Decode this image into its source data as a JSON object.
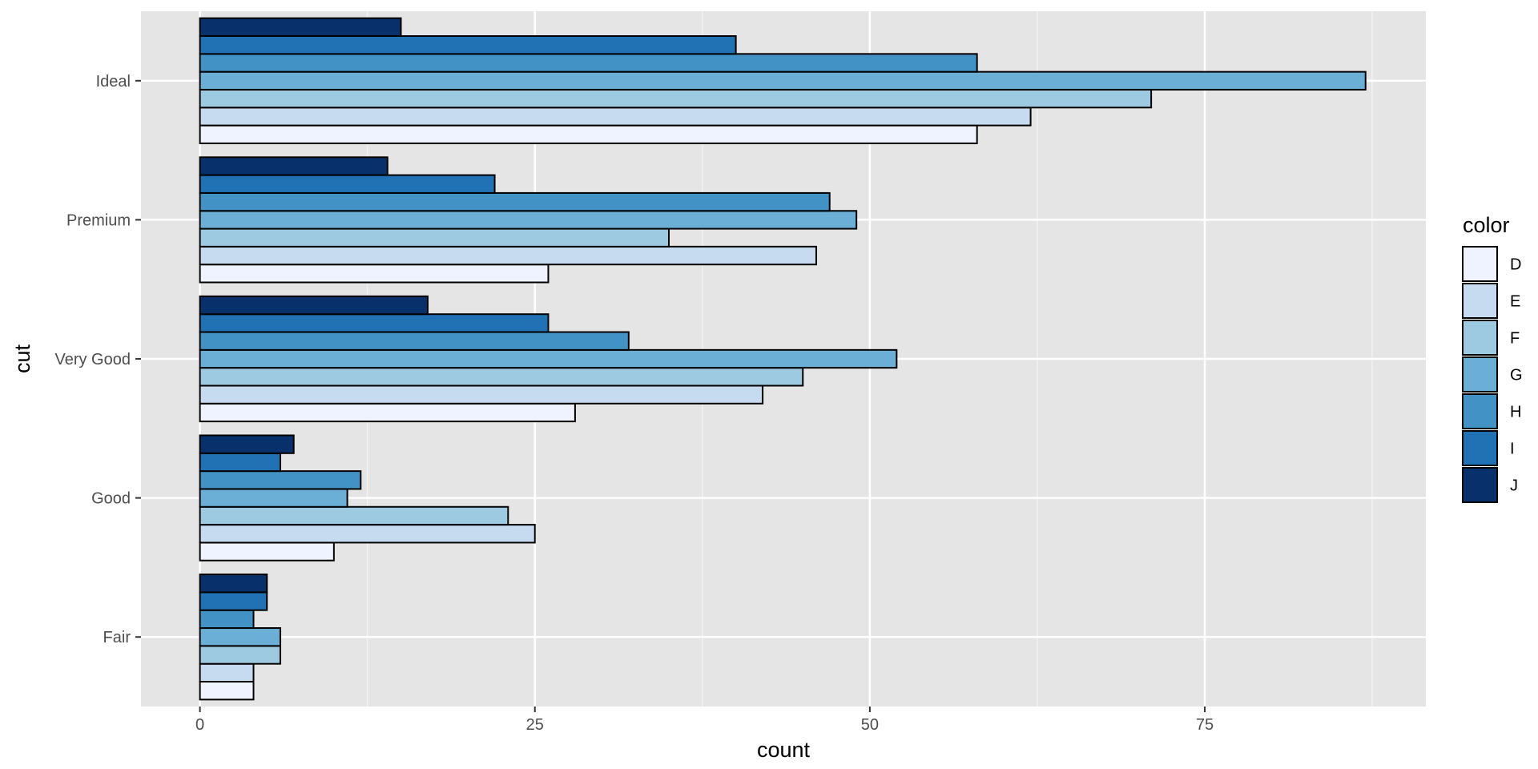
{
  "chart_data": {
    "type": "bar",
    "orientation": "horizontal",
    "position": "dodge",
    "xlabel": "count",
    "ylabel": "cut",
    "categories": [
      "Fair",
      "Good",
      "Very Good",
      "Premium",
      "Ideal"
    ],
    "xlim": [
      -4.4,
      91.5
    ],
    "x_ticks": [
      0,
      25,
      50,
      75
    ],
    "grid": true,
    "legend": {
      "title": "color",
      "position": "right"
    },
    "series": [
      {
        "name": "D",
        "color": "#EFF3FF",
        "values": [
          4,
          10,
          28,
          26,
          58
        ]
      },
      {
        "name": "E",
        "color": "#C6DBEF",
        "values": [
          4,
          25,
          42,
          46,
          62
        ]
      },
      {
        "name": "F",
        "color": "#9ECAE1",
        "values": [
          6,
          23,
          45,
          35,
          71
        ]
      },
      {
        "name": "G",
        "color": "#6BAED6",
        "values": [
          6,
          11,
          52,
          49,
          87
        ]
      },
      {
        "name": "H",
        "color": "#4292C6",
        "values": [
          4,
          12,
          32,
          47,
          58
        ]
      },
      {
        "name": "I",
        "color": "#2171B5",
        "values": [
          5,
          6,
          26,
          22,
          40
        ]
      },
      {
        "name": "J",
        "color": "#08306B",
        "values": [
          5,
          7,
          17,
          14,
          15
        ]
      }
    ]
  }
}
